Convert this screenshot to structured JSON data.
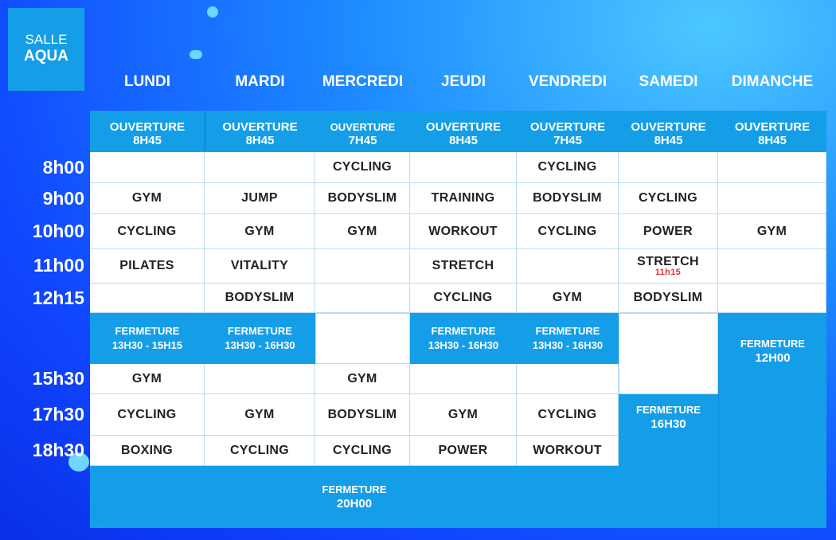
{
  "salle": {
    "line1": "SALLE",
    "line2": "AQUA"
  },
  "days": [
    "LUNDI",
    "MARDI",
    "MERCREDI",
    "JEUDI",
    "VENDREDI",
    "SAMEDI",
    "DIMANCHE"
  ],
  "times": [
    "8h00",
    "9h00",
    "10h00",
    "11h00",
    "12h15",
    "15h30",
    "17h30",
    "18h30"
  ],
  "opening": [
    {
      "label": "OUVERTURE",
      "time": "8H45"
    },
    {
      "label": "OUVERTURE",
      "time": "8H45"
    },
    {
      "label": "OUVERTURE",
      "time": "7H45"
    },
    {
      "label": "OUVERTURE",
      "time": "8H45"
    },
    {
      "label": "OUVERTURE",
      "time": "7H45"
    },
    {
      "label": "OUVERTURE",
      "time": "8H45"
    },
    {
      "label": "OUVERTURE",
      "time": "8H45"
    }
  ],
  "schedule": {
    "r8h00": [
      "",
      "",
      "CYCLING",
      "",
      "CYCLING",
      "",
      ""
    ],
    "r9h00": [
      "GYM",
      "JUMP",
      "BODYSLIM",
      "TRAINING",
      "BODYSLIM",
      "CYCLING",
      ""
    ],
    "r10h00": [
      "CYCLING",
      "GYM",
      "GYM",
      "WORKOUT",
      "CYCLING",
      "POWER",
      "GYM"
    ],
    "r11h00": [
      "PILATES",
      "VITALITY",
      "",
      "STRETCH",
      "",
      "STRETCH",
      ""
    ],
    "r11h00_note": "11h15",
    "r12h15": [
      "",
      "BODYSLIM",
      "",
      "CYCLING",
      "GYM",
      "BODYSLIM",
      ""
    ],
    "r15h30": [
      "GYM",
      "",
      "GYM",
      "",
      ""
    ],
    "r17h30": [
      "CYCLING",
      "GYM",
      "BODYSLIM",
      "GYM",
      "CYCLING"
    ],
    "r18h30": [
      "BOXING",
      "CYCLING",
      "CYCLING",
      "POWER",
      "WORKOUT"
    ]
  },
  "closures": {
    "lundi": {
      "label": "FERMETURE",
      "time": "13H30 - 15H15"
    },
    "mardi": {
      "label": "FERMETURE",
      "time": "13H30 - 16H30"
    },
    "jeudi": {
      "label": "FERMETURE",
      "time": "13H30 - 16H30"
    },
    "vendredi": {
      "label": "FERMETURE",
      "time": "13H30 - 16H30"
    },
    "samedi": {
      "label": "FERMETURE",
      "time": "16H30"
    },
    "dimanche": {
      "label": "FERMETURE",
      "time": "12H00"
    },
    "evening": {
      "label": "FERMETURE",
      "time": "20H00"
    }
  },
  "colors": {
    "panel": "#159ee8",
    "background": "#1046ff",
    "note": "#e0303a"
  }
}
